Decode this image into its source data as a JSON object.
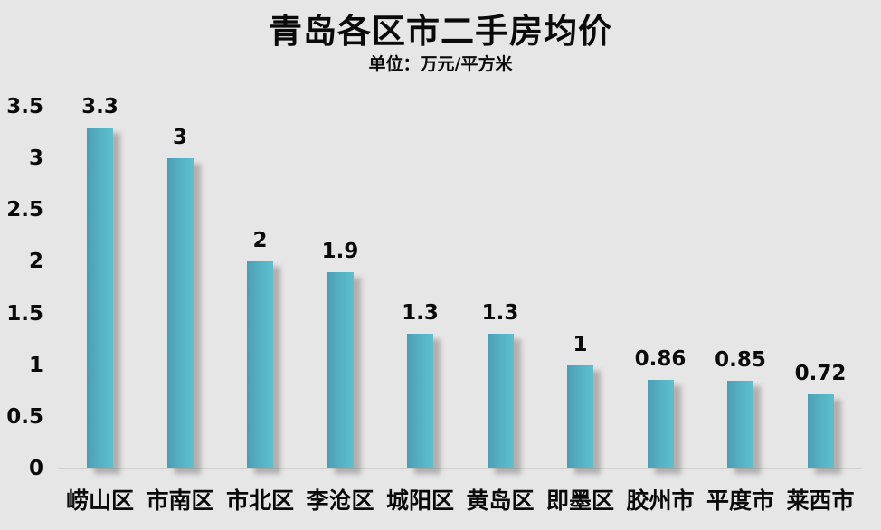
{
  "page": {
    "background_color": "#e6e6e6",
    "text_color": "#0a0a0a"
  },
  "header": {
    "title": "青岛各区市二手房均价",
    "subtitle": "单位：万元/平方米"
  },
  "chart_data": {
    "type": "bar",
    "title": "青岛各区市二手房均价",
    "subtitle": "单位：万元/平方米",
    "categories": [
      "崂山区",
      "市南区",
      "市北区",
      "李沧区",
      "城阳区",
      "黄岛区",
      "即墨区",
      "胶州市",
      "平度市",
      "莱西市"
    ],
    "values": [
      3.3,
      3,
      2,
      1.9,
      1.3,
      1.3,
      1,
      0.86,
      0.85,
      0.72
    ],
    "data_labels": [
      "3.3",
      "3",
      "2",
      "1.9",
      "1.3",
      "1.3",
      "1",
      "0.86",
      "0.85",
      "0.72"
    ],
    "xlabel": "",
    "ylabel": "",
    "ylim": [
      0,
      3.5
    ],
    "ytick_interval": 0.5,
    "ytick_labels": [
      "0",
      "0.5",
      "1",
      "1.5",
      "2",
      "2.5",
      "3",
      "3.5"
    ],
    "grid": false,
    "legend_position": "none",
    "bar_color": "#54b0c2",
    "bar_gradient_left": "#4d9db4",
    "bar_gradient_right": "#5cc0cc",
    "axis_line_color": "#d0d0d0",
    "background_color": "#e6e6e6",
    "label_color": "#0a0a0a"
  }
}
